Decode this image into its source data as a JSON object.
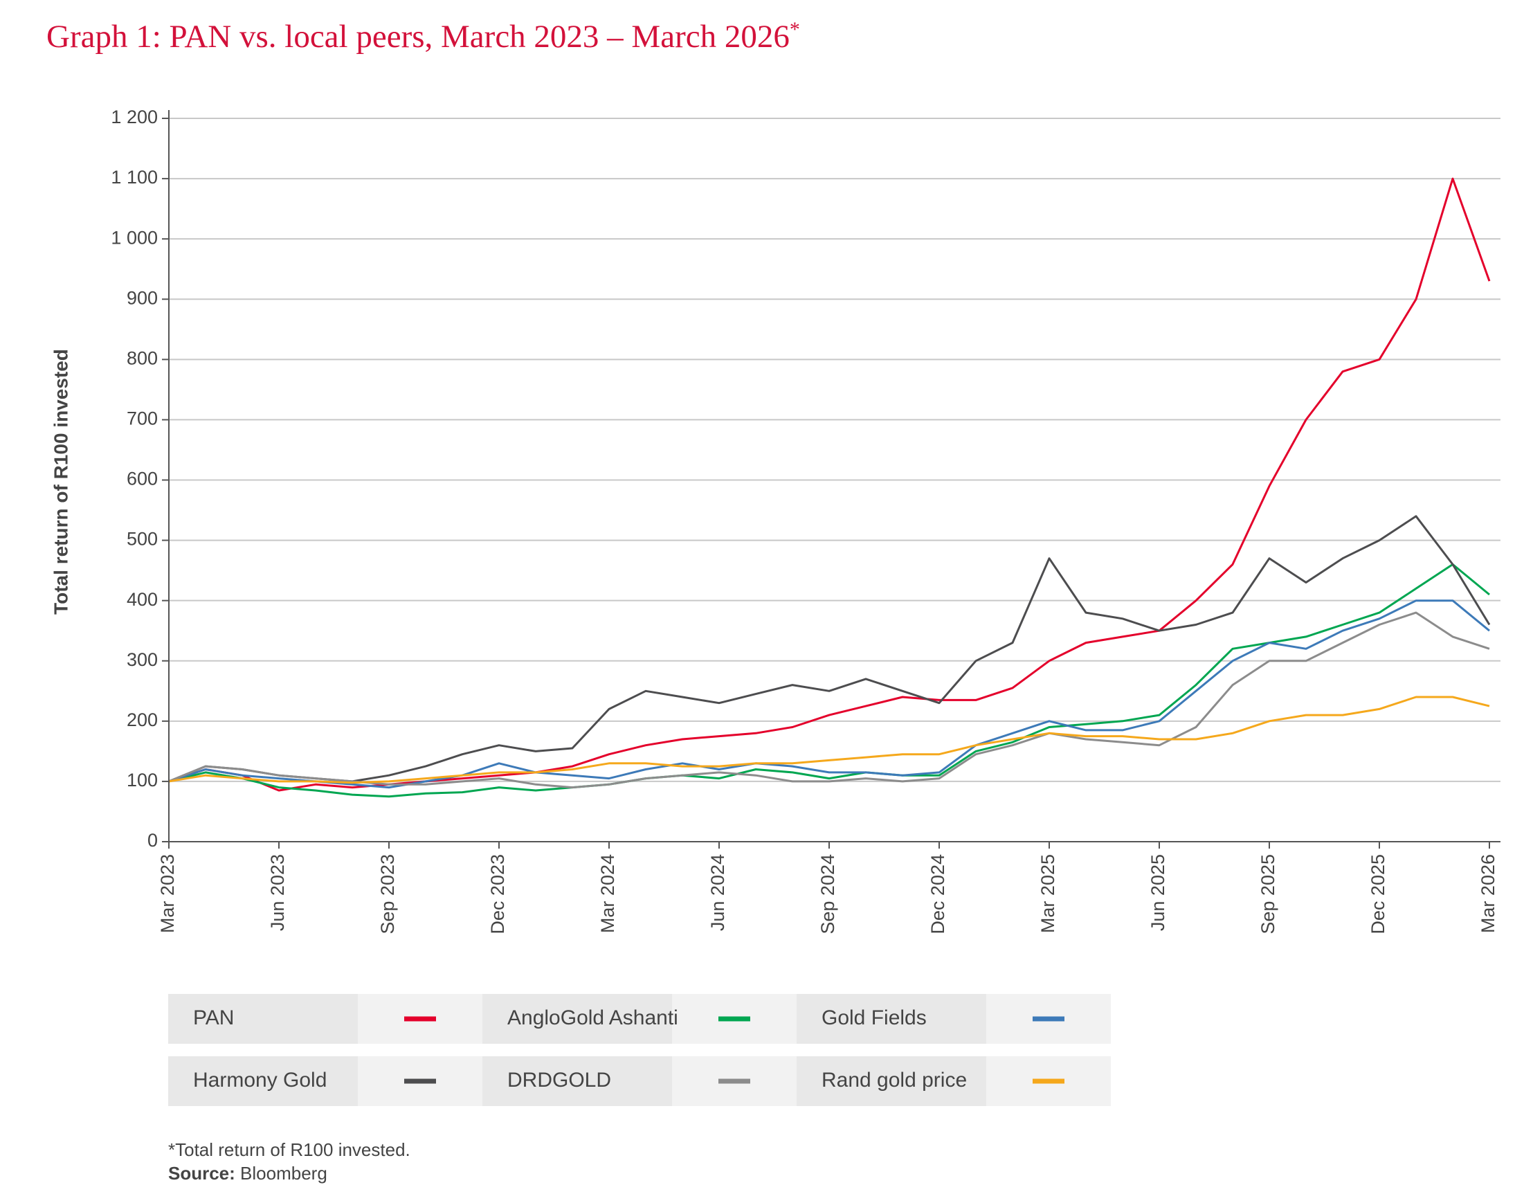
{
  "chart_data": {
    "type": "line",
    "title": "Graph 1: PAN vs. local peers, March 2023 – March 2026",
    "title_marker": "*",
    "y_label": "Total return of R100 invested",
    "footnote": "*Total return of R100 invested.",
    "source_label": "Source:",
    "source": "Bloomberg",
    "x": [
      "2023-03",
      "2023-04",
      "2023-05",
      "2023-06",
      "2023-07",
      "2023-08",
      "2023-09",
      "2023-10",
      "2023-11",
      "2023-12",
      "2024-01",
      "2024-02",
      "2024-03",
      "2024-04",
      "2024-05",
      "2024-06",
      "2024-07",
      "2024-08",
      "2024-09",
      "2024-10",
      "2024-11",
      "2024-12",
      "2025-01",
      "2025-02",
      "2025-03",
      "2025-04",
      "2025-05",
      "2025-06",
      "2025-07",
      "2025-08",
      "2025-09",
      "2025-10",
      "2025-11",
      "2025-12",
      "2026-01",
      "2026-02",
      "2026-03"
    ],
    "xlim": [
      "2023-03",
      "2026-03"
    ],
    "xticks": [
      {
        "value": "2023-03",
        "label": "Mar 2023"
      },
      {
        "value": "2023-06",
        "label": "Jun 2023"
      },
      {
        "value": "2023-09",
        "label": "Sep 2023"
      },
      {
        "value": "2023-12",
        "label": "Dec 2023"
      },
      {
        "value": "2024-03",
        "label": "Mar 2024"
      },
      {
        "value": "2024-06",
        "label": "Jun 2024"
      },
      {
        "value": "2024-09",
        "label": "Sep 2024"
      },
      {
        "value": "2024-12",
        "label": "Dec 2024"
      },
      {
        "value": "2025-03",
        "label": "Mar 2025"
      },
      {
        "value": "2025-06",
        "label": "Jun 2025"
      },
      {
        "value": "2025-09",
        "label": "Sep 2025"
      },
      {
        "value": "2025-12",
        "label": "Dec 2025"
      },
      {
        "value": "2026-03",
        "label": "Mar 2026"
      }
    ],
    "ylim": [
      0,
      1200
    ],
    "yticks": [
      0,
      100,
      200,
      300,
      400,
      500,
      600,
      700,
      800,
      900,
      {
        "value": 1000,
        "label": "1 000"
      },
      {
        "value": 1100,
        "label": "1 100"
      },
      {
        "value": 1200,
        "label": "1 200"
      }
    ],
    "grid": true,
    "series": [
      {
        "name": "PAN",
        "color": "#e4002b",
        "values": [
          100,
          120,
          110,
          85,
          95,
          90,
          95,
          100,
          105,
          110,
          115,
          125,
          145,
          160,
          170,
          175,
          180,
          190,
          210,
          225,
          240,
          235,
          235,
          255,
          300,
          330,
          340,
          350,
          400,
          460,
          590,
          700,
          780,
          800,
          900,
          1100,
          930
        ]
      },
      {
        "name": "AngloGold Ashanti",
        "color": "#00a651",
        "values": [
          100,
          115,
          105,
          90,
          85,
          78,
          75,
          80,
          82,
          90,
          85,
          90,
          95,
          105,
          110,
          105,
          120,
          115,
          105,
          115,
          110,
          110,
          150,
          165,
          190,
          195,
          200,
          210,
          260,
          320,
          330,
          340,
          360,
          380,
          420,
          460,
          410
        ]
      },
      {
        "name": "Gold Fields",
        "color": "#3d7ab8",
        "values": [
          100,
          120,
          110,
          105,
          100,
          95,
          90,
          100,
          110,
          130,
          115,
          110,
          105,
          120,
          130,
          120,
          130,
          125,
          115,
          115,
          110,
          115,
          160,
          180,
          200,
          185,
          185,
          200,
          250,
          300,
          330,
          320,
          350,
          370,
          400,
          400,
          350
        ]
      },
      {
        "name": "Harmony Gold",
        "color": "#4d4d4f",
        "values": [
          100,
          125,
          120,
          110,
          105,
          100,
          110,
          125,
          145,
          160,
          150,
          155,
          220,
          250,
          240,
          230,
          245,
          260,
          250,
          270,
          250,
          230,
          300,
          330,
          470,
          380,
          370,
          350,
          360,
          380,
          470,
          430,
          470,
          500,
          540,
          460,
          360
        ]
      },
      {
        "name": "DRDGOLD",
        "color": "#8c8c8c",
        "values": [
          100,
          125,
          120,
          110,
          105,
          100,
          95,
          95,
          100,
          105,
          95,
          90,
          95,
          105,
          110,
          115,
          110,
          100,
          100,
          105,
          100,
          105,
          145,
          160,
          180,
          170,
          165,
          160,
          190,
          260,
          300,
          300,
          330,
          360,
          380,
          340,
          320
        ]
      },
      {
        "name": "Rand gold price",
        "color": "#f5a81c",
        "values": [
          100,
          110,
          105,
          100,
          100,
          98,
          100,
          105,
          110,
          115,
          115,
          120,
          130,
          130,
          125,
          125,
          130,
          130,
          135,
          140,
          145,
          145,
          160,
          170,
          180,
          175,
          175,
          170,
          170,
          180,
          200,
          210,
          210,
          220,
          240,
          240,
          225
        ]
      }
    ]
  }
}
